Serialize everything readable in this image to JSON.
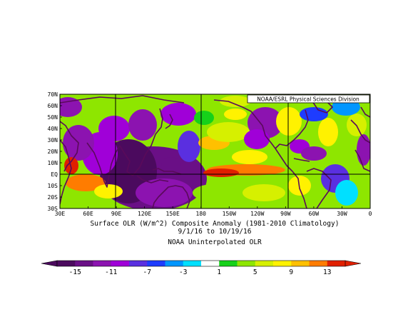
{
  "figure": {
    "source_label": "NOAA/ESRL Physical Sciences Division",
    "caption_line1": "Surface OLR (W/m^2) Composite Anomaly (1981-2010 Climatology)",
    "caption_line2": "9/1/16  to 10/19/16",
    "caption_line3": "NOAA Uninterpolated OLR"
  },
  "map": {
    "lat_labels": [
      "70N",
      "60N",
      "50N",
      "40N",
      "30N",
      "20N",
      "10N",
      "EQ",
      "10S",
      "20S",
      "30S"
    ],
    "lon_labels": [
      "30E",
      "60E",
      "90E",
      "120E",
      "150E",
      "180",
      "150W",
      "120W",
      "90W",
      "60W",
      "30W",
      "0"
    ]
  },
  "colorbar": {
    "tick_labels": [
      "-15",
      "-11",
      "-7",
      "-3",
      "1",
      "5",
      "9",
      "13"
    ],
    "colors": [
      "#4b0a5e",
      "#6a0f86",
      "#8c13b0",
      "#a000d8",
      "#5a2fe0",
      "#1e3cff",
      "#0096ff",
      "#00e0ff",
      "#ffffff",
      "#16d11a",
      "#8ee600",
      "#d6f000",
      "#fff200",
      "#ffc000",
      "#ff7c00",
      "#e02000"
    ]
  }
}
